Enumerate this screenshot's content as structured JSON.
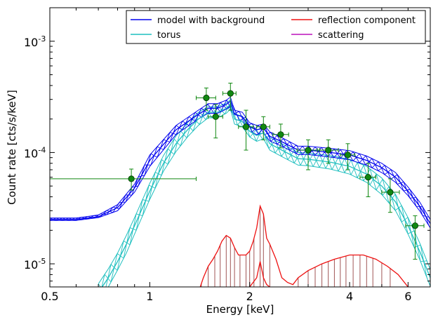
{
  "chart_data": {
    "type": "line",
    "xlabel": "Energy [keV]",
    "ylabel": "Count rate [cts/s/keV]",
    "xscale": "log",
    "yscale": "log",
    "xlim": [
      0.5,
      7.0
    ],
    "ylim": [
      6.2e-06,
      0.002
    ],
    "x_ticks": [
      {
        "value": 0.5,
        "label": "0.5"
      },
      {
        "value": 1,
        "label": "1"
      },
      {
        "value": 2,
        "label": "2"
      },
      {
        "value": 4,
        "label": "4"
      },
      {
        "value": 6,
        "label": "6"
      }
    ],
    "y_ticks": [
      {
        "value": 1e-05,
        "base": "10",
        "exp": "-5"
      },
      {
        "value": 0.0001,
        "base": "10",
        "exp": "-4"
      },
      {
        "value": 0.001,
        "base": "10",
        "exp": "-3"
      }
    ],
    "legend_position": "top-right",
    "legend": [
      {
        "label": "model with background",
        "color": "#0000ee"
      },
      {
        "label": "torus",
        "color": "#1fbfbf"
      },
      {
        "label": "reflection component",
        "color": "#ee1111"
      },
      {
        "label": "scattering",
        "color": "#bb11bb"
      }
    ],
    "series": [
      {
        "name": "model with background",
        "color": "#0000ee",
        "x": [
          0.5,
          0.6,
          0.7,
          0.8,
          0.9,
          1.0,
          1.2,
          1.4,
          1.5,
          1.6,
          1.7,
          1.75,
          1.8,
          1.9,
          2.0,
          2.1,
          2.2,
          2.3,
          2.5,
          2.8,
          3.0,
          3.5,
          4.0,
          4.5,
          5.0,
          5.5,
          6.0,
          6.5,
          7.0
        ],
        "y": [
          2.5e-05,
          2.5e-05,
          2.65e-05,
          3.2e-05,
          4.8e-05,
          8.5e-05,
          0.00016,
          0.00022,
          0.00025,
          0.00025,
          0.00027,
          0.00029,
          0.00022,
          0.00021,
          0.00017,
          0.00016,
          0.000165,
          0.00014,
          0.000125,
          0.000105,
          0.000105,
          0.0001,
          9.5e-05,
          8.5e-05,
          7.3e-05,
          6e-05,
          4.5e-05,
          3.3e-05,
          2.3e-05
        ],
        "band_low": [
          2.45e-05,
          2.45e-05,
          2.6e-05,
          3e-05,
          4.4e-05,
          7.5e-05,
          0.000145,
          0.0002,
          0.000225,
          0.000225,
          0.000245,
          0.000265,
          0.0002,
          0.00019,
          0.000155,
          0.000145,
          0.00015,
          0.000127,
          0.000114,
          9.6e-05,
          9.6e-05,
          9.1e-05,
          8.6e-05,
          7.7e-05,
          6.6e-05,
          5.4e-05,
          4.1e-05,
          3e-05,
          2.1e-05
        ],
        "band_high": [
          2.58e-05,
          2.58e-05,
          2.75e-05,
          3.4e-05,
          5.2e-05,
          9.5e-05,
          0.000175,
          0.00024,
          0.000275,
          0.000275,
          0.000295,
          0.000315,
          0.00024,
          0.00023,
          0.000185,
          0.000175,
          0.00018,
          0.000153,
          0.000136,
          0.000114,
          0.000114,
          0.000109,
          0.000104,
          9.3e-05,
          8e-05,
          6.6e-05,
          4.9e-05,
          3.6e-05,
          2.5e-05
        ]
      },
      {
        "name": "torus",
        "color": "#1fbfbf",
        "x": [
          0.7,
          0.75,
          0.8,
          0.85,
          0.9,
          1.0,
          1.1,
          1.2,
          1.3,
          1.4,
          1.5,
          1.6,
          1.7,
          1.75,
          1.8,
          1.9,
          2.0,
          2.1,
          2.2,
          2.3,
          2.5,
          2.8,
          3.0,
          3.5,
          4.0,
          4.5,
          5.0,
          5.5,
          6.0,
          6.5,
          7.0
        ],
        "y": [
          5.5e-06,
          7.5e-06,
          1.05e-05,
          1.5e-05,
          2.2e-05,
          4.5e-05,
          8e-05,
          0.00012,
          0.00016,
          0.0002,
          0.00023,
          0.00023,
          0.00025,
          0.00027,
          0.0002,
          0.00019,
          0.000155,
          0.000142,
          0.00015,
          0.00012,
          0.000105,
          8.8e-05,
          8.7e-05,
          8.2e-05,
          7.5e-05,
          6.4e-05,
          5e-05,
          3.6e-05,
          2.2e-05,
          1.3e-05,
          7.5e-06
        ],
        "band_low": [
          4.5e-06,
          6.2e-06,
          8.8e-06,
          1.25e-05,
          1.85e-05,
          3.8e-05,
          6.8e-05,
          0.000102,
          0.000138,
          0.000175,
          0.000205,
          0.000205,
          0.000225,
          0.000245,
          0.00018,
          0.00017,
          0.000138,
          0.000126,
          0.000133,
          0.000105,
          9.2e-05,
          7.7e-05,
          7.6e-05,
          7.1e-05,
          6.4e-05,
          5.4e-05,
          4.2e-05,
          3e-05,
          1.85e-05,
          1.1e-05,
          6.3e-06
        ],
        "band_high": [
          6.6e-06,
          9e-06,
          1.25e-05,
          1.8e-05,
          2.6e-05,
          5.3e-05,
          9.4e-05,
          0.000141,
          0.000186,
          0.000229,
          0.000258,
          0.000258,
          0.000278,
          0.000298,
          0.000222,
          0.000212,
          0.000174,
          0.00016,
          0.000168,
          0.000136,
          0.00012,
          0.0001,
          9.9e-05,
          9.4e-05,
          8.7e-05,
          7.5e-05,
          5.9e-05,
          4.2e-05,
          2.6e-05,
          1.55e-05,
          8.9e-06
        ]
      },
      {
        "name": "reflection component",
        "color": "#ee1111",
        "x": [
          1.4,
          1.45,
          1.5,
          1.55,
          1.6,
          1.65,
          1.7,
          1.75,
          1.8,
          1.85,
          1.9,
          1.95,
          2.0,
          2.05,
          2.1,
          2.15,
          2.2,
          2.25,
          2.3,
          2.4,
          2.5,
          2.6,
          2.7,
          2.8,
          3.0,
          3.3,
          3.6,
          4.0,
          4.4,
          4.8,
          5.2,
          5.6,
          6.0
        ],
        "y": [
          5.5e-06,
          7.5e-06,
          9.5e-06,
          1.1e-05,
          1.3e-05,
          1.6e-05,
          1.8e-05,
          1.7e-05,
          1.4e-05,
          1.2e-05,
          1.2e-05,
          1.2e-05,
          1.3e-05,
          1.6e-05,
          2.1e-05,
          3.3e-05,
          2.8e-05,
          1.7e-05,
          1.5e-05,
          1.1e-05,
          7.5e-06,
          6.8e-06,
          6.5e-06,
          7.5e-06,
          8.7e-06,
          1e-05,
          1.1e-05,
          1.2e-05,
          1.2e-05,
          1.1e-05,
          9.5e-06,
          8e-06,
          6.2e-06
        ]
      },
      {
        "name": "scattering",
        "color": "#bb11bb",
        "x": [],
        "y": []
      }
    ],
    "reflection_lower_branch": {
      "x": [
        2.0,
        2.1,
        2.15,
        2.2,
        2.25,
        2.3
      ],
      "y": [
        6.2e-06,
        7.5e-06,
        1.05e-05,
        7.5e-06,
        6.5e-06,
        6.2e-06
      ]
    },
    "data_points": {
      "color": "#118811",
      "points": [
        {
          "x": 0.88,
          "y": 5.8e-05,
          "xlo": 0.5,
          "xhi": 1.38,
          "ylo": 4.6e-05,
          "yhi": 7.1e-05
        },
        {
          "x": 1.48,
          "y": 0.00031,
          "xlo": 1.38,
          "xhi": 1.58,
          "ylo": 0.00024,
          "yhi": 0.00038
        },
        {
          "x": 1.58,
          "y": 0.00021,
          "xlo": 1.5,
          "xhi": 1.66,
          "ylo": 0.000135,
          "yhi": 0.00027
        },
        {
          "x": 1.75,
          "y": 0.00034,
          "xlo": 1.66,
          "xhi": 1.82,
          "ylo": 0.00024,
          "yhi": 0.00042
        },
        {
          "x": 1.95,
          "y": 0.00017,
          "xlo": 1.85,
          "xhi": 2.05,
          "ylo": 0.000105,
          "yhi": 0.00024
        },
        {
          "x": 2.2,
          "y": 0.00017,
          "xlo": 2.1,
          "xhi": 2.3,
          "ylo": 0.00013,
          "yhi": 0.00021
        },
        {
          "x": 2.48,
          "y": 0.000145,
          "xlo": 2.35,
          "xhi": 2.62,
          "ylo": 0.00011,
          "yhi": 0.00018
        },
        {
          "x": 3.0,
          "y": 0.000105,
          "xlo": 2.78,
          "xhi": 3.25,
          "ylo": 7e-05,
          "yhi": 0.00013
        },
        {
          "x": 3.45,
          "y": 0.000105,
          "xlo": 3.2,
          "xhi": 3.7,
          "ylo": 8e-05,
          "yhi": 0.00013
        },
        {
          "x": 3.95,
          "y": 9.5e-05,
          "xlo": 3.75,
          "xhi": 4.15,
          "ylo": 7e-05,
          "yhi": 0.00012
        },
        {
          "x": 4.55,
          "y": 6e-05,
          "xlo": 4.3,
          "xhi": 4.8,
          "ylo": 4e-05,
          "yhi": 8e-05
        },
        {
          "x": 5.3,
          "y": 4.4e-05,
          "xlo": 5.0,
          "xhi": 5.65,
          "ylo": 2.9e-05,
          "yhi": 5.8e-05
        },
        {
          "x": 6.3,
          "y": 2.2e-05,
          "xlo": 5.9,
          "xhi": 6.7,
          "ylo": 1.1e-05,
          "yhi": 2.7e-05
        }
      ]
    },
    "reflection_bin_markers": [
      1.43,
      1.5,
      1.57,
      1.63,
      1.7,
      1.75,
      1.8,
      1.87,
      1.95,
      2.0,
      2.06,
      2.15,
      2.2,
      2.3,
      2.8,
      3.0,
      3.15,
      3.3,
      3.45,
      3.6,
      3.75,
      3.9,
      4.1,
      4.3,
      4.5,
      4.7,
      5.0,
      5.3
    ]
  }
}
